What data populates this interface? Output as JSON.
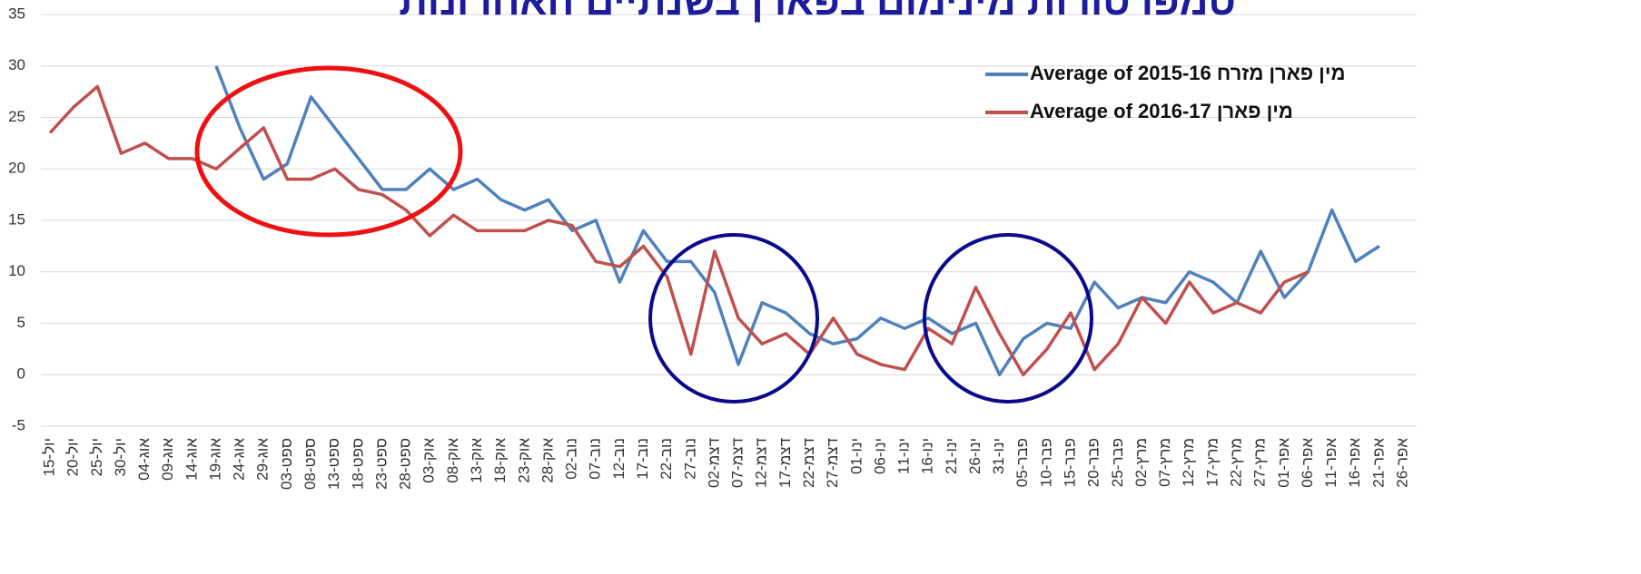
{
  "chart_data": {
    "type": "line",
    "title": "טמפרטורות מינימום בפארן בשנתיים האחרונות",
    "categories": [
      "15-יול",
      "20-יול",
      "25-יול",
      "30-יול",
      "04-אוג",
      "09-אוג",
      "14-אוג",
      "19-אוג",
      "24-אוג",
      "29-אוג",
      "03-ספט",
      "08-ספט",
      "13-ספט",
      "18-ספט",
      "23-ספט",
      "28-ספט",
      "03-אוק",
      "08-אוק",
      "13-אוק",
      "18-אוק",
      "23-אוק",
      "28-אוק",
      "02-נוב",
      "07-נוב",
      "12-נוב",
      "17-נוב",
      "22-נוב",
      "27-נוב",
      "02-דצמ",
      "07-דצמ",
      "12-דצמ",
      "17-דצמ",
      "22-דצמ",
      "27-דצמ",
      "01-ינו",
      "06-ינו",
      "11-ינו",
      "16-ינו",
      "21-ינו",
      "26-ינו",
      "31-ינו",
      "05-פבר",
      "10-פבר",
      "15-פבר",
      "20-פבר",
      "25-פבר",
      "02-מרץ",
      "07-מרץ",
      "12-מרץ",
      "17-מרץ",
      "22-מרץ",
      "27-מרץ",
      "01-אפר",
      "06-אפר",
      "11-אפר",
      "16-אפר",
      "21-אפר",
      "26-אפר"
    ],
    "series": [
      {
        "name": "Average of 2015-16 מין פארן מזרח",
        "color": "#4f81bd",
        "values": [
          null,
          null,
          null,
          null,
          null,
          null,
          null,
          30,
          24,
          19,
          20.5,
          27,
          24,
          21,
          18,
          18,
          20,
          18,
          19,
          17,
          16,
          17,
          14,
          15,
          9,
          14,
          11,
          11,
          8,
          1,
          7,
          6,
          4,
          3,
          3.5,
          5.5,
          4.5,
          5.5,
          4,
          5,
          0,
          3.5,
          5,
          4.5,
          9,
          6.5,
          7.5,
          7,
          10,
          9,
          7,
          12,
          7.5,
          10,
          16,
          11,
          12.5,
          null
        ]
      },
      {
        "name": "Average of 2016-17 מין פארן",
        "color": "#c0504d",
        "values": [
          23.5,
          26,
          28,
          21.5,
          22.5,
          21,
          21,
          20,
          22,
          24,
          19,
          19,
          20,
          18,
          17.5,
          16,
          13.5,
          15.5,
          14,
          14,
          14,
          15,
          14.5,
          11,
          10.5,
          12.5,
          9.5,
          2,
          12,
          5.5,
          3,
          4,
          2,
          5.5,
          2,
          1,
          0.5,
          4.5,
          3,
          8.5,
          4,
          0,
          2.5,
          6,
          0.5,
          3,
          7.5,
          5,
          9,
          6,
          7,
          6,
          9,
          10,
          null,
          null,
          null,
          null
        ]
      }
    ],
    "ylim": [
      -5,
      35
    ],
    "yticks": [
      -5,
      0,
      5,
      10,
      15,
      20,
      25,
      30,
      35
    ],
    "grid": true
  }
}
